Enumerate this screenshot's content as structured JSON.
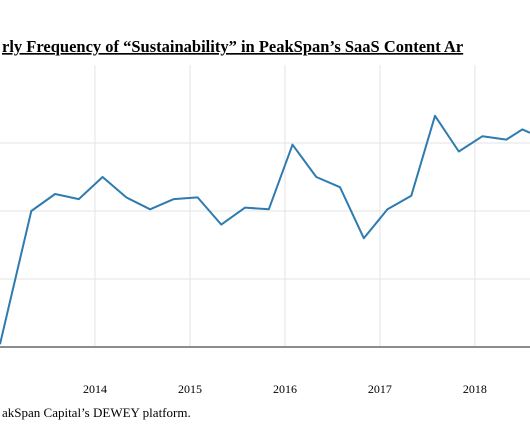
{
  "chart_data": {
    "type": "line",
    "title": "rly Frequency of “Sustainability” in PeakSpan’s SaaS Content Ar",
    "source": "akSpan Capital’s DEWEY platform.",
    "x_tick_labels": [
      "2014",
      "2015",
      "2016",
      "2017",
      "2018"
    ],
    "grid": true,
    "colors": {
      "line": "#2e7bb0",
      "grid": "#e3e3e3",
      "baseline": "#8c8c8c",
      "text": "#000000"
    },
    "series": [
      {
        "x": [
          2013.0,
          2013.09,
          2013.33,
          2013.58,
          2013.83,
          2014.08,
          2014.33,
          2014.58,
          2014.83,
          2015.08,
          2015.33,
          2015.58,
          2015.83,
          2016.08,
          2016.33,
          2016.58,
          2016.83,
          2017.08,
          2017.33,
          2017.58,
          2017.83,
          2018.08,
          2018.33,
          2018.5,
          2018.58
        ],
        "y": [
          0.08,
          1.15,
          4.0,
          4.5,
          4.35,
          5.0,
          4.4,
          4.05,
          4.35,
          4.4,
          3.6,
          4.1,
          4.05,
          5.95,
          5.0,
          4.7,
          3.2,
          4.05,
          4.45,
          6.8,
          5.75,
          6.2,
          6.1,
          6.4,
          6.3
        ]
      }
    ]
  }
}
